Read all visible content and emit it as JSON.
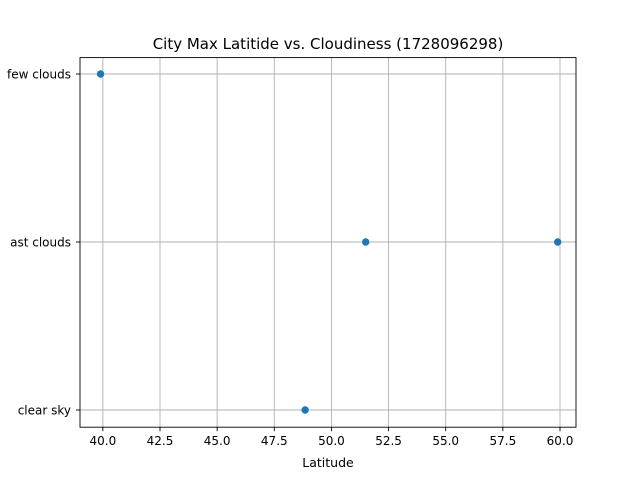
{
  "chart_data": {
    "type": "scatter",
    "title": "City Max Latitide vs. Cloudiness (1728096298)",
    "xlabel": "Latitude",
    "ylabel": "",
    "xlim": [
      39.0,
      60.7
    ],
    "x_ticks": [
      40.0,
      42.5,
      45.0,
      47.5,
      50.0,
      52.5,
      55.0,
      57.5,
      60.0
    ],
    "x_tick_labels": [
      "40.0",
      "42.5",
      "45.0",
      "47.5",
      "50.0",
      "52.5",
      "55.0",
      "57.5",
      "60.0"
    ],
    "categories": [
      "clear sky",
      "overcast clouds",
      "few clouds"
    ],
    "category_labels_visible": [
      "clear sky",
      "ast clouds",
      "few clouds"
    ],
    "grid": true,
    "points": [
      {
        "x": 39.9,
        "y": "few clouds"
      },
      {
        "x": 48.85,
        "y": "clear sky"
      },
      {
        "x": 51.5,
        "y": "overcast clouds"
      },
      {
        "x": 59.9,
        "y": "overcast clouds"
      }
    ],
    "color": "#1f77b4"
  }
}
